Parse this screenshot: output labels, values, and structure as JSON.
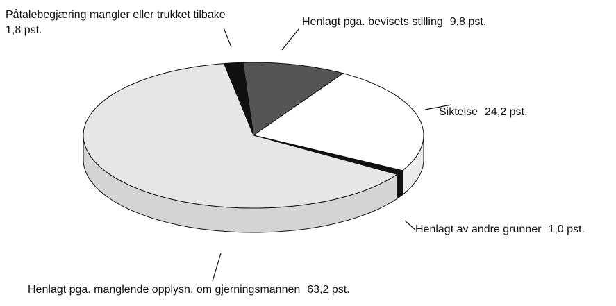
{
  "chart_data": {
    "type": "pie",
    "categories": [
      "Påtalebegjæring mangler eller trukket tilbake",
      "Henlagt pga. bevisets stilling",
      "Siktelse",
      "Henlagt av andre grunner",
      "Henlagt pga. manglende opplysn. om gjerningsmannen"
    ],
    "values": [
      1.8,
      9.8,
      24.2,
      1.0,
      63.2
    ],
    "value_labels": [
      "1,8 pst.",
      "9,8 pst.",
      "24,2 pst.",
      "1,0 pst.",
      "63,2 pst."
    ],
    "colors": [
      "#111111",
      "#555555",
      "#ffffff",
      "#111111",
      "#e6e6e6"
    ]
  }
}
